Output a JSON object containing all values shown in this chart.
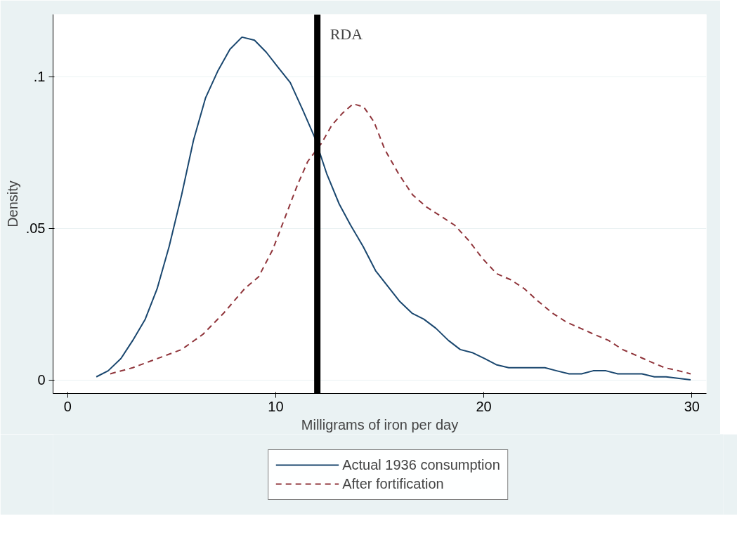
{
  "chart_data": {
    "type": "line",
    "xlabel": "Milligrams of iron per day",
    "ylabel": "Density",
    "xlim": [
      -0.7,
      30.7
    ],
    "ylim": [
      -0.0045,
      0.1205
    ],
    "xticks": [
      0,
      10,
      20,
      30
    ],
    "yticks": [
      0,
      {
        "value": 0.05,
        "label": ".05"
      },
      {
        "value": 0.1,
        "label": ".1"
      }
    ],
    "grid": "y",
    "legend": "bottom",
    "series": [
      {
        "name": "Actual 1936 consumption",
        "color": "#1a476f",
        "line_style": "solid",
        "x": [
          1.38,
          1.95,
          2.56,
          3.13,
          3.73,
          4.3,
          4.88,
          5.48,
          6.05,
          6.63,
          7.23,
          7.8,
          8.38,
          8.98,
          9.55,
          10.12,
          10.7,
          11.3,
          11.87,
          12.45,
          13.05,
          13.6,
          14.2,
          14.8,
          15.37,
          15.94,
          16.55,
          17.12,
          17.7,
          18.3,
          18.87,
          19.44,
          20.05,
          20.6,
          21.2,
          22.37,
          22.94,
          23.5,
          24.1,
          24.7,
          25.26,
          25.87,
          26.44,
          27.0,
          27.6,
          28.2,
          28.76,
          29.94
        ],
        "values": [
          0.001,
          0.003,
          0.007,
          0.013,
          0.02,
          0.03,
          0.044,
          0.061,
          0.079,
          0.093,
          0.102,
          0.109,
          0.113,
          0.112,
          0.108,
          0.103,
          0.098,
          0.089,
          0.08,
          0.068,
          0.058,
          0.051,
          0.044,
          0.036,
          0.031,
          0.026,
          0.022,
          0.02,
          0.017,
          0.013,
          0.01,
          0.009,
          0.007,
          0.005,
          0.004,
          0.004,
          0.004,
          0.003,
          0.002,
          0.002,
          0.003,
          0.003,
          0.002,
          0.002,
          0.002,
          0.001,
          0.001,
          0.0
        ]
      },
      {
        "name": "After fortification",
        "color": "#90353b",
        "line_style": "dashed",
        "x": [
          2.05,
          3.13,
          4.3,
          5.48,
          6.5,
          7.5,
          8.5,
          9.18,
          9.86,
          10.53,
          11.03,
          11.54,
          12.2,
          12.7,
          13.22,
          13.72,
          14.23,
          14.73,
          15.24,
          15.9,
          16.58,
          17.25,
          17.93,
          18.6,
          19.27,
          19.94,
          20.62,
          21.3,
          21.96,
          22.6,
          23.3,
          23.98,
          24.65,
          25.3,
          26.0,
          26.67,
          27.35,
          28.0,
          28.7,
          29.36,
          29.94
        ],
        "values": [
          0.002,
          0.004,
          0.007,
          0.01,
          0.015,
          0.022,
          0.03,
          0.034,
          0.043,
          0.055,
          0.064,
          0.072,
          0.078,
          0.084,
          0.088,
          0.091,
          0.09,
          0.085,
          0.076,
          0.068,
          0.061,
          0.057,
          0.054,
          0.051,
          0.046,
          0.04,
          0.035,
          0.033,
          0.03,
          0.026,
          0.022,
          0.019,
          0.017,
          0.015,
          0.013,
          0.01,
          0.008,
          0.006,
          0.004,
          0.003,
          0.002
        ]
      }
    ],
    "ref_lines": [
      {
        "axis": "x",
        "value": 12,
        "label": "RDA",
        "color": "#000000",
        "line_style": "solid"
      }
    ]
  }
}
